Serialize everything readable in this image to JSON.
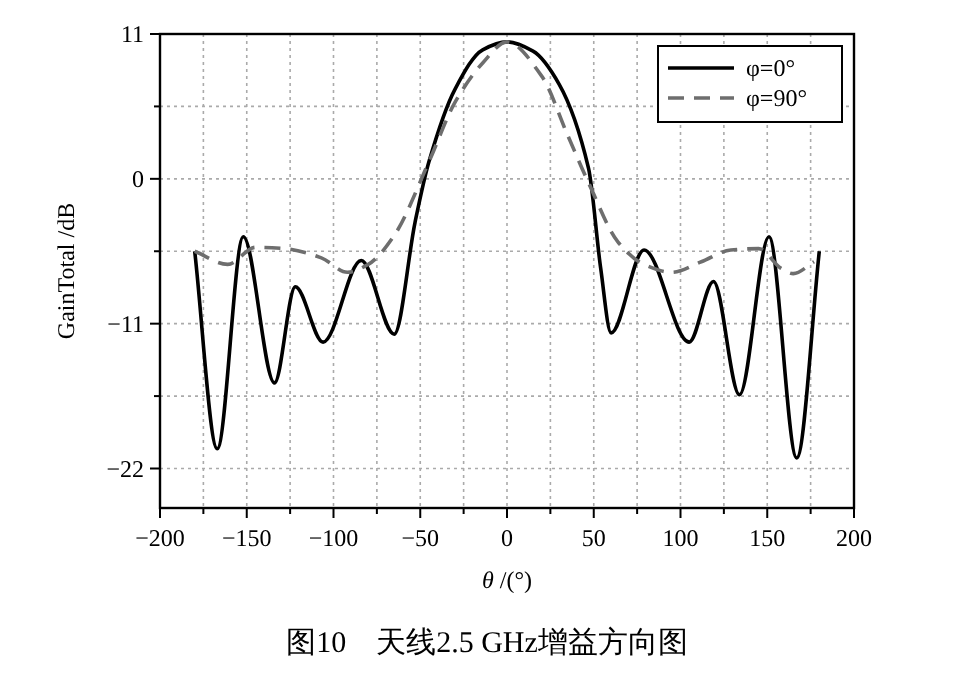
{
  "chart_data": {
    "type": "line",
    "xlabel": "θ /(°)",
    "ylabel": "GainTotal /dB",
    "annotations": [
      "图10　天线2.5 GHz增益方向图"
    ],
    "xlim": [
      -200,
      200
    ],
    "ylim": [
      -25,
      11
    ],
    "xticks": [
      -200,
      {
        "value": -175,
        "label": null
      },
      -150,
      {
        "value": -125,
        "label": null
      },
      -100,
      {
        "value": -75,
        "label": null
      },
      -50,
      {
        "value": -25,
        "label": null
      },
      0,
      {
        "value": 25,
        "label": null
      },
      50,
      {
        "value": 75,
        "label": null
      },
      100,
      {
        "value": 125,
        "label": null
      },
      150,
      {
        "value": 175,
        "label": null
      },
      200
    ],
    "yticks": [
      -22,
      {
        "value": -16.5,
        "label": null
      },
      -11,
      {
        "value": -5.5,
        "label": null
      },
      0,
      {
        "value": 5.5,
        "label": null
      },
      11
    ],
    "grid": true,
    "legend": "top right",
    "marker": "none",
    "series": [
      {
        "name": "φ=0°",
        "color": "#000000",
        "line_style": "solid",
        "x": [
          -180,
          -167,
          -152,
          -134,
          -122,
          -106,
          -84,
          -65,
          -53,
          -45,
          -30,
          -14,
          0,
          15,
          30,
          47,
          54,
          60,
          79,
          105,
          119,
          134,
          151,
          167,
          180
        ],
        "values": [
          -5.5,
          -20.5,
          -4.4,
          -15.5,
          -8.2,
          -12.4,
          -6.2,
          -11.8,
          -3.3,
          1.3,
          6.8,
          9.8,
          10.4,
          9.7,
          7.2,
          0.8,
          -6.8,
          -11.7,
          -5.4,
          -12.4,
          -7.8,
          -16.4,
          -4.4,
          -21.2,
          -5.5
        ]
      },
      {
        "name": "φ=90°",
        "color": "#6e6e6e",
        "line_style": "dashed",
        "x": [
          -180,
          -161,
          -145,
          -128,
          -107,
          -92,
          -80,
          -65,
          -45,
          -30,
          -14,
          0,
          20,
          35,
          47,
          64,
          79,
          95,
          112,
          129,
          145,
          158,
          165,
          177
        ],
        "values": [
          -5.5,
          -6.5,
          -5.2,
          -5.3,
          -6.0,
          -7.1,
          -6.5,
          -4.3,
          1.3,
          5.8,
          8.8,
          10.4,
          7.8,
          3.3,
          -0.3,
          -4.8,
          -6.5,
          -7.1,
          -6.3,
          -5.4,
          -5.3,
          -6.8,
          -7.2,
          -6.3
        ]
      }
    ]
  }
}
